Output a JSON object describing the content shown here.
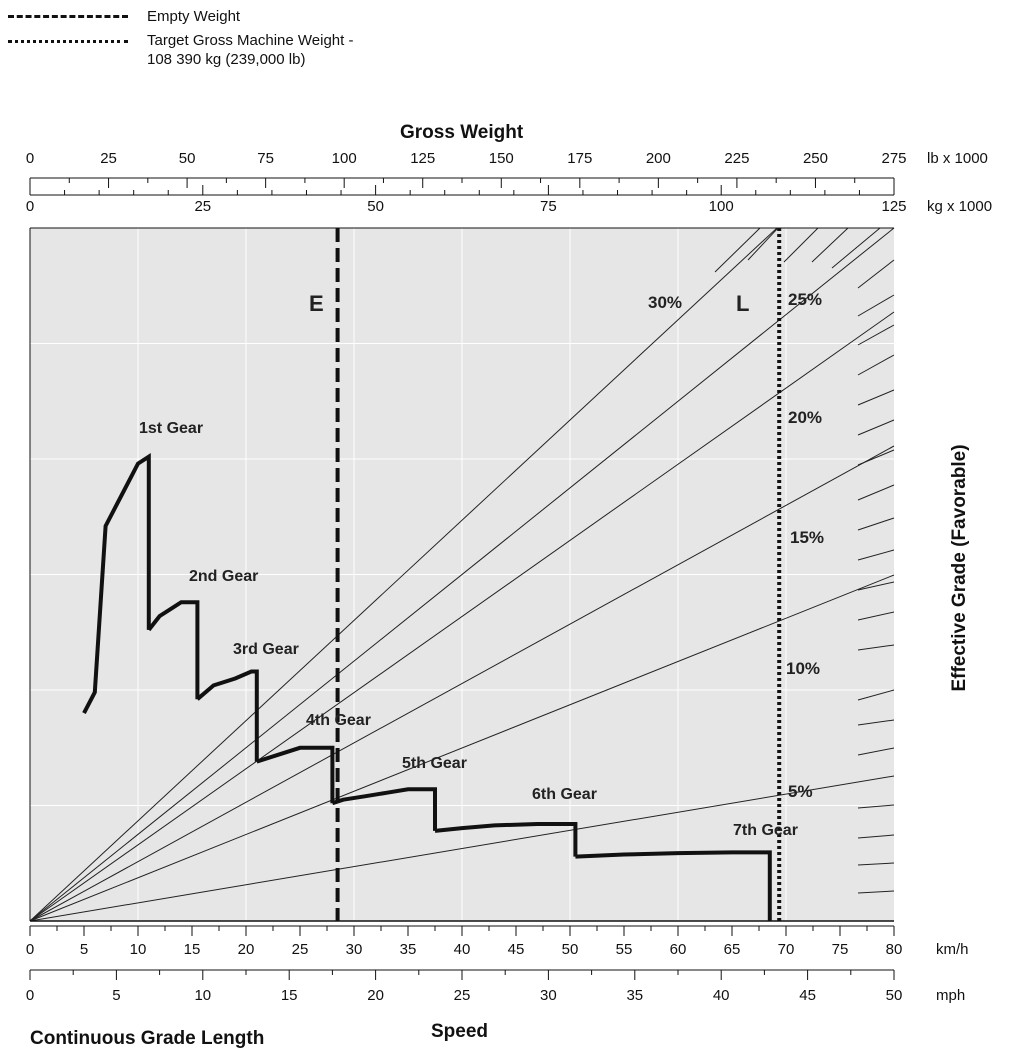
{
  "legend": [
    {
      "label": "Empty Weight",
      "style": "dashed"
    },
    {
      "label": "Target Gross Machine Weight -",
      "label2": "108 390 kg (239,000 lb)",
      "style": "dotted"
    }
  ],
  "chart_data": {
    "type": "line",
    "title": "Gross Weight",
    "axes": {
      "top_lb": {
        "unit": "lb x 1000",
        "min": 0,
        "max": 275,
        "ticks": [
          0,
          25,
          50,
          75,
          100,
          125,
          150,
          175,
          200,
          225,
          250,
          275
        ]
      },
      "top_kg": {
        "unit": "kg x 1000",
        "min": 0,
        "max": 125,
        "ticks": [
          0,
          25,
          50,
          75,
          100,
          125
        ]
      },
      "bottom_kmh": {
        "unit": "km/h",
        "min": 0,
        "max": 80,
        "ticks": [
          0,
          5,
          10,
          15,
          20,
          25,
          30,
          35,
          40,
          45,
          50,
          55,
          60,
          65,
          70,
          75,
          80
        ]
      },
      "bottom_mph": {
        "unit": "mph",
        "min": 0,
        "max": 50,
        "ticks": [
          0,
          5,
          10,
          15,
          20,
          25,
          30,
          35,
          40,
          45,
          50
        ]
      },
      "xlabel": "Speed",
      "ylabel": "Effective Grade (Favorable)"
    },
    "bottom_left_caption": "Continuous Grade Length",
    "markers": [
      {
        "label": "E",
        "weight_kg_x1000": 44.5,
        "style": "dashed"
      },
      {
        "label": "L",
        "weight_kg_x1000": 108.39,
        "style": "dotted"
      }
    ],
    "grade_lines": [
      {
        "label": "5%"
      },
      {
        "label": "10%"
      },
      {
        "label": "15%"
      },
      {
        "label": "20%"
      },
      {
        "label": "25%"
      },
      {
        "label": "30%"
      }
    ],
    "gears": [
      {
        "name": "1st Gear",
        "speed_kmh": [
          5,
          6,
          7,
          8,
          9,
          10,
          11,
          11
        ],
        "fraction_from_top": [
          0.7,
          0.67,
          0.43,
          0.4,
          0.37,
          0.34,
          0.33,
          0.58
        ]
      },
      {
        "name": "2nd Gear",
        "speed_kmh": [
          11,
          12,
          13,
          14,
          15,
          15.5,
          15.5
        ],
        "fraction_from_top": [
          0.58,
          0.56,
          0.55,
          0.54,
          0.54,
          0.54,
          0.68
        ]
      },
      {
        "name": "3rd Gear",
        "speed_kmh": [
          15.5,
          17,
          19,
          20.5,
          21,
          21
        ],
        "fraction_from_top": [
          0.68,
          0.66,
          0.65,
          0.64,
          0.64,
          0.77
        ]
      },
      {
        "name": "4th Gear",
        "speed_kmh": [
          21,
          23,
          25,
          27,
          28,
          28
        ],
        "fraction_from_top": [
          0.77,
          0.76,
          0.75,
          0.75,
          0.75,
          0.83
        ]
      },
      {
        "name": "5th Gear",
        "speed_kmh": [
          28,
          29,
          31,
          33,
          35,
          37.5,
          37.5
        ],
        "fraction_from_top": [
          0.83,
          0.825,
          0.82,
          0.815,
          0.81,
          0.81,
          0.87
        ]
      },
      {
        "name": "6th Gear",
        "speed_kmh": [
          37.5,
          40,
          43,
          47,
          50.5,
          50.5
        ],
        "fraction_from_top": [
          0.87,
          0.866,
          0.862,
          0.86,
          0.86,
          0.907
        ]
      },
      {
        "name": "7th Gear",
        "speed_kmh": [
          50.5,
          55,
          60,
          65,
          68.5,
          68.5
        ],
        "fraction_from_top": [
          0.907,
          0.904,
          0.902,
          0.901,
          0.901,
          1.0
        ]
      }
    ],
    "grid": true,
    "background": "#e6e6e6"
  }
}
